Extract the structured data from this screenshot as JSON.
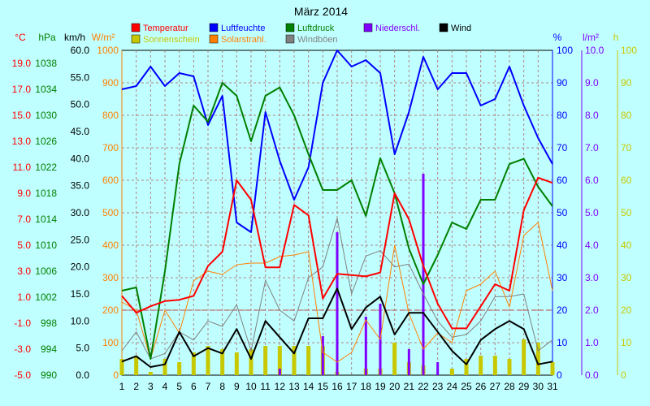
{
  "chart_data": {
    "type": "line",
    "title": "März 2014",
    "x": [
      1,
      2,
      3,
      4,
      5,
      6,
      7,
      8,
      9,
      10,
      11,
      12,
      13,
      14,
      15,
      16,
      17,
      18,
      19,
      20,
      21,
      22,
      23,
      24,
      25,
      26,
      27,
      28,
      29,
      30,
      31
    ],
    "axes": [
      {
        "id": "temp",
        "unit": "°C",
        "color": "#ff0000",
        "min": -5,
        "max": 20,
        "ticks": [
          "-5.0",
          "-3.0",
          "-1.0",
          "1.0",
          "3.0",
          "5.0",
          "7.0",
          "9.0",
          "11.0",
          "13.0",
          "15.0",
          "17.0",
          "19.0"
        ],
        "tick_values": [
          -5,
          -3,
          -1,
          1,
          3,
          5,
          7,
          9,
          11,
          13,
          15,
          17,
          19
        ]
      },
      {
        "id": "pressure",
        "unit": "hPa",
        "color": "#008000",
        "min": 990,
        "max": 1040,
        "ticks": [
          "990",
          "994",
          "998",
          "1002",
          "1006",
          "1010",
          "1014",
          "1018",
          "1022",
          "1026",
          "1030",
          "1034",
          "1038"
        ],
        "tick_values": [
          990,
          994,
          998,
          1002,
          1006,
          1010,
          1014,
          1018,
          1022,
          1026,
          1030,
          1034,
          1038
        ]
      },
      {
        "id": "wind",
        "unit": "km/h",
        "color": "#000000",
        "min": 0,
        "max": 60,
        "ticks": [
          "0.0",
          "5.0",
          "10.0",
          "15.0",
          "20.0",
          "25.0",
          "30.0",
          "35.0",
          "40.0",
          "45.0",
          "50.0",
          "55.0",
          "60.0"
        ],
        "tick_values": [
          0,
          5,
          10,
          15,
          20,
          25,
          30,
          35,
          40,
          45,
          50,
          55,
          60
        ]
      },
      {
        "id": "solar",
        "unit": "W/m²",
        "color": "#ff8000",
        "min": 0,
        "max": 1000,
        "ticks": [
          "0",
          "100",
          "200",
          "300",
          "400",
          "500",
          "600",
          "700",
          "800",
          "900",
          "1000"
        ],
        "tick_values": [
          0,
          100,
          200,
          300,
          400,
          500,
          600,
          700,
          800,
          900,
          1000
        ]
      },
      {
        "id": "humidity",
        "unit": "%",
        "color": "#0000ff",
        "min": 0,
        "max": 100,
        "ticks": [
          "0",
          "10",
          "20",
          "30",
          "40",
          "50",
          "60",
          "70",
          "80",
          "90",
          "100"
        ],
        "tick_values": [
          0,
          10,
          20,
          30,
          40,
          50,
          60,
          70,
          80,
          90,
          100
        ]
      },
      {
        "id": "rain",
        "unit": "l/m²",
        "color": "#8000ff",
        "min": 0,
        "max": 10,
        "ticks": [
          "0.0",
          "1.0",
          "2.0",
          "3.0",
          "4.0",
          "5.0",
          "6.0",
          "7.0",
          "8.0",
          "9.0",
          "10.0"
        ],
        "tick_values": [
          0,
          1,
          2,
          3,
          4,
          5,
          6,
          7,
          8,
          9,
          10
        ]
      },
      {
        "id": "sun",
        "unit": "h",
        "color": "#c8c800",
        "min": 0,
        "max": 100,
        "ticks": [
          "0",
          "10",
          "20",
          "30",
          "40",
          "50",
          "60",
          "70",
          "80",
          "90",
          "100"
        ],
        "tick_values": [
          0,
          10,
          20,
          30,
          40,
          50,
          60,
          70,
          80,
          90,
          100
        ]
      }
    ],
    "legend": [
      {
        "name": "Temperatur",
        "color": "#ff0000"
      },
      {
        "name": "Luftfeuchte",
        "color": "#0000ff"
      },
      {
        "name": "Luftdruck",
        "color": "#008000"
      },
      {
        "name": "Niederschl.",
        "color": "#8000ff"
      },
      {
        "name": "Wind",
        "color": "#000000"
      },
      {
        "name": "Sonnenschein",
        "color": "#c8c800"
      },
      {
        "name": "Solarstrahl.",
        "color": "#ff8000"
      },
      {
        "name": "Windböen",
        "color": "#808080"
      }
    ],
    "series": [
      {
        "name": "Temperatur",
        "axis": "temp",
        "color": "#ff0000",
        "width": 2,
        "values": [
          1.1,
          -0.2,
          0.3,
          0.7,
          0.8,
          1.1,
          3.4,
          4.5,
          10.0,
          8.5,
          3.3,
          3.3,
          8.1,
          7.3,
          0.9,
          2.8,
          2.7,
          2.6,
          2.9,
          9.0,
          7.0,
          3.4,
          0.5,
          -1.4,
          -1.4,
          0.3,
          2.0,
          1.5,
          7.7,
          10.2,
          9.8
        ]
      },
      {
        "name": "Luftfeuchte",
        "axis": "humidity",
        "color": "#0000ff",
        "width": 2,
        "values": [
          88,
          89,
          95,
          89,
          93,
          92,
          77,
          86,
          47,
          44,
          81,
          66,
          54,
          64,
          90,
          100,
          95,
          97,
          93,
          68,
          81,
          98,
          88,
          93,
          93,
          83,
          85,
          95,
          83,
          73,
          65
        ]
      },
      {
        "name": "Luftdruck",
        "axis": "pressure",
        "color": "#008000",
        "width": 2,
        "values": [
          1003,
          1003.5,
          992.5,
          1006,
          1022.5,
          1031.5,
          1029,
          1035,
          1033,
          1026,
          1033,
          1034.3,
          1030,
          1024,
          1018.5,
          1018.5,
          1020,
          1014.5,
          1023.4,
          1018,
          1009.5,
          1004,
          1008.5,
          1013.5,
          1012.5,
          1017,
          1017,
          1022.5,
          1023.3,
          1019,
          1016
        ]
      },
      {
        "name": "Windböen",
        "axis": "wind",
        "color": "#808080",
        "width": 1,
        "values": [
          4.5,
          8.0,
          3.0,
          4.0,
          8.0,
          6.5,
          10.0,
          9.0,
          13.0,
          4.5,
          17.5,
          12.0,
          10.0,
          18.0,
          20.0,
          29.0,
          15.0,
          22.0,
          23.0,
          20.0,
          20.5,
          15.0,
          10.0,
          7.0,
          7.5,
          10.0,
          14.5,
          14.5,
          15.0,
          4.5,
          6.5
        ]
      },
      {
        "name": "Solarstrahl.",
        "axis": "solar",
        "color": "#ff8000",
        "width": 1,
        "values": [
          225,
          200,
          50,
          200,
          130,
          290,
          320,
          310,
          340,
          345,
          345,
          365,
          370,
          380,
          70,
          40,
          70,
          170,
          110,
          400,
          190,
          80,
          130,
          100,
          260,
          280,
          320,
          210,
          430,
          470,
          260
        ]
      },
      {
        "name": "Wind",
        "axis": "wind",
        "color": "#000000",
        "width": 2,
        "values": [
          2.5,
          3.5,
          1.5,
          2.0,
          8.0,
          3.5,
          5.0,
          4.0,
          8.5,
          3.0,
          10.0,
          7.0,
          4.0,
          10.5,
          10.5,
          16.0,
          8.5,
          12.5,
          14.5,
          7.5,
          11.5,
          11.5,
          8.0,
          4.5,
          2.0,
          6.5,
          8.5,
          10.0,
          8.5,
          2.0,
          2.5
        ]
      }
    ],
    "bars": [
      {
        "name": "Sonnenschein",
        "axis": "sun",
        "color": "#c8c800",
        "width": 5,
        "values": [
          5,
          6,
          1,
          5,
          4,
          7,
          9,
          8,
          7,
          8,
          9,
          9,
          9,
          9,
          9,
          1,
          0,
          2,
          2,
          10,
          4,
          3,
          0,
          2,
          5,
          6,
          6,
          5,
          11,
          10,
          4
        ]
      },
      {
        "name": "Niederschl.",
        "axis": "rain",
        "color": "#8000ff",
        "width": 3,
        "values": [
          0,
          0,
          0,
          0,
          0,
          0,
          0,
          0,
          0,
          0,
          0,
          0.2,
          0,
          0,
          1.2,
          4.4,
          0,
          1.8,
          2.2,
          0,
          0.8,
          6.2,
          0.4,
          0,
          0,
          0,
          0,
          0,
          0,
          0,
          0
        ]
      }
    ]
  }
}
